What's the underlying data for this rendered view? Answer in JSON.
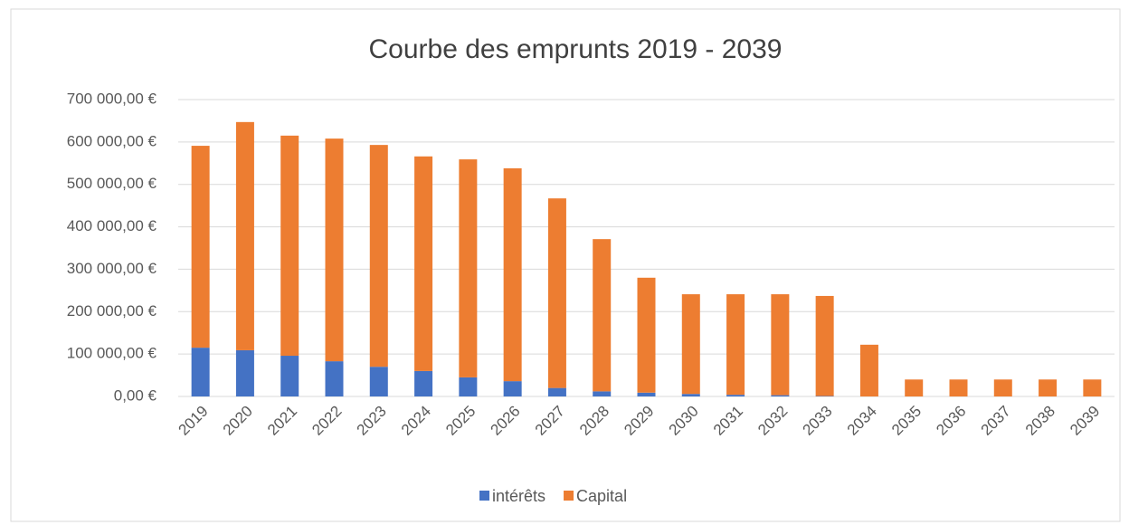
{
  "chart_data": {
    "type": "stacked_bar",
    "title": "Courbe des emprunts 2019 - 2039",
    "categories": [
      "2019",
      "2020",
      "2021",
      "2022",
      "2023",
      "2024",
      "2025",
      "2026",
      "2027",
      "2028",
      "2029",
      "2030",
      "2031",
      "2032",
      "2033",
      "2034",
      "2035",
      "2036",
      "2037",
      "2038",
      "2039"
    ],
    "series": [
      {
        "name": "intérêts",
        "color": "#4472c4",
        "values": [
          115000,
          109000,
          96000,
          83000,
          70000,
          60000,
          45000,
          36000,
          20000,
          12000,
          9000,
          6000,
          4000,
          3000,
          1000,
          0,
          0,
          0,
          0,
          0,
          0
        ]
      },
      {
        "name": "Capital",
        "color": "#ed7d31",
        "values": [
          476000,
          538000,
          519000,
          525000,
          523000,
          506000,
          514000,
          502000,
          447000,
          359000,
          271000,
          235000,
          237000,
          238000,
          236000,
          122000,
          40000,
          40000,
          40000,
          40000,
          40000
        ]
      }
    ],
    "ylim": [
      0,
      700000
    ],
    "yticks": [
      {
        "value": 0,
        "label": "0,00 €"
      },
      {
        "value": 100000,
        "label": "100 000,00 €"
      },
      {
        "value": 200000,
        "label": "200 000,00 €"
      },
      {
        "value": 300000,
        "label": "300 000,00 €"
      },
      {
        "value": 400000,
        "label": "400 000,00 €"
      },
      {
        "value": 500000,
        "label": "500 000,00 €"
      },
      {
        "value": 600000,
        "label": "600 000,00 €"
      },
      {
        "value": 700000,
        "label": "700 000,00 €"
      }
    ],
    "grid": true,
    "legend": "bottom"
  }
}
